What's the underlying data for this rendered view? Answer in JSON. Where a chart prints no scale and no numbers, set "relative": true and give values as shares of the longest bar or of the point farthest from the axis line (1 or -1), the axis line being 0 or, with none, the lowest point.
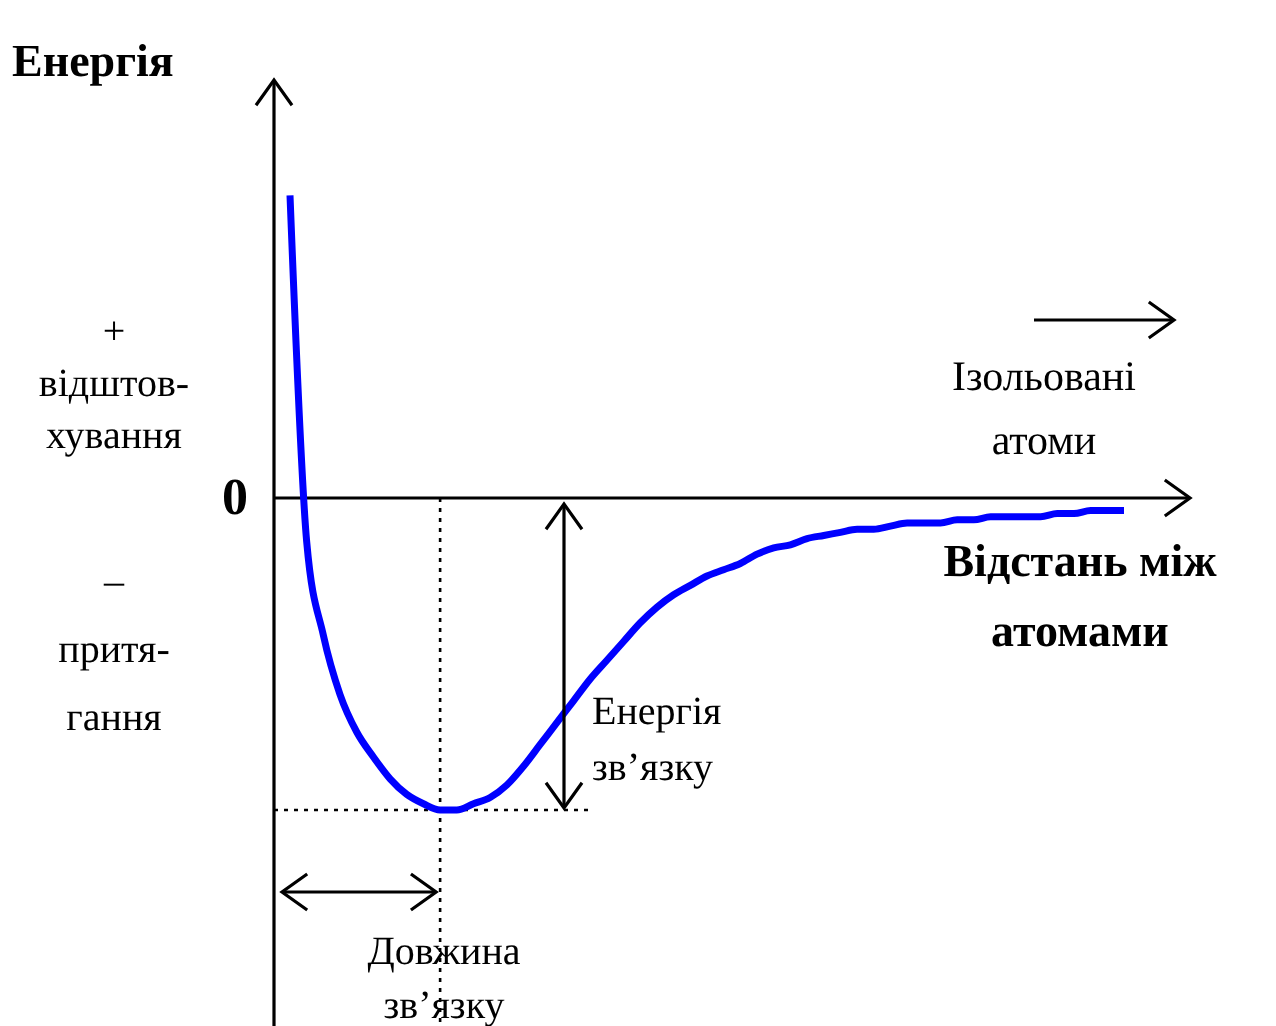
{
  "chart_data": {
    "type": "line",
    "relative": true,
    "ylabel": "Енергія",
    "xlabel": "Відстань між\nатомами",
    "categories": [
      null,
      null,
      null,
      null,
      null,
      null,
      null,
      null,
      null,
      null,
      null,
      null,
      null,
      null,
      null,
      null,
      null,
      null,
      null,
      null,
      null,
      null,
      null,
      null,
      null,
      null,
      null,
      null,
      null,
      null,
      null,
      null,
      null,
      null,
      null,
      null,
      null,
      null,
      null,
      null,
      null,
      null,
      null,
      null,
      null,
      null,
      null,
      null,
      null,
      null,
      null
    ],
    "series": [
      {
        "color": "#0000ff",
        "values": [
          0.97,
          -0.14,
          -0.44,
          -0.63,
          -0.75,
          -0.83,
          -0.9,
          -0.95,
          -0.98,
          -1,
          -1,
          -0.98,
          -0.96,
          -0.92,
          -0.86,
          -0.79,
          -0.72,
          -0.65,
          -0.58,
          -0.52,
          -0.46,
          -0.4,
          -0.35,
          -0.31,
          -0.28,
          -0.25,
          -0.23,
          -0.21,
          -0.18,
          -0.16,
          -0.15,
          -0.13,
          -0.12,
          -0.11,
          -0.1,
          -0.1,
          -0.09,
          -0.08,
          -0.08,
          -0.08,
          -0.07,
          -0.07,
          -0.06,
          -0.06,
          -0.06,
          -0.06,
          -0.05,
          -0.05,
          -0.04,
          -0.04,
          -0.04
        ]
      }
    ],
    "ref_lines": [
      {
        "axis": "y",
        "value": -1,
        "color": "#000000",
        "line_style": "dotted"
      }
    ],
    "annotations": [
      "+\nвідштов-\nхування",
      "–\nпритя-\nгання",
      "0",
      "Ізольовані\nатоми",
      "Енергія\nзв’язку",
      "Довжина\nзв’язку"
    ]
  }
}
